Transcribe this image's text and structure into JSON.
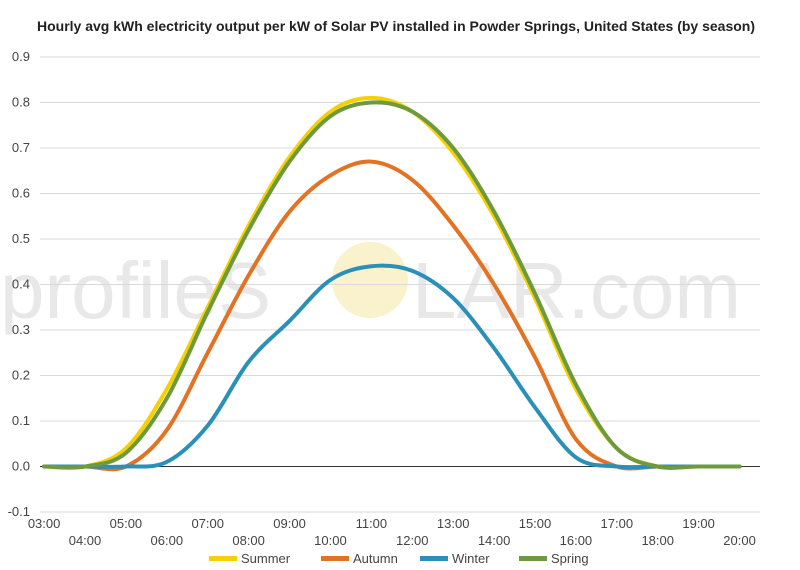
{
  "chart_data": {
    "type": "line",
    "title": "Hourly avg kWh electricity output per kW of Solar PV installed in Powder Springs, United States (by season)",
    "xlabel": "",
    "ylabel": "",
    "ylim": [
      -0.1,
      0.9
    ],
    "yticks": [
      -0.1,
      0.0,
      0.1,
      0.2,
      0.3,
      0.4,
      0.5,
      0.6,
      0.7,
      0.8,
      0.9
    ],
    "ytick_labels": [
      "-0.1",
      "0.0",
      "0.1",
      "0.2",
      "0.3",
      "0.4",
      "0.5",
      "0.6",
      "0.7",
      "0.8",
      "0.9"
    ],
    "xlim": [
      2.9,
      20.5
    ],
    "x_ticks_upper": [
      "03:00",
      "05:00",
      "07:00",
      "09:00",
      "11:00",
      "13:00",
      "15:00",
      "17:00",
      "19:00"
    ],
    "x_ticks_lower": [
      "04:00",
      "06:00",
      "08:00",
      "10:00",
      "12:00",
      "14:00",
      "16:00",
      "18:00",
      "20:00"
    ],
    "x": [
      3,
      4,
      5,
      6,
      7,
      8,
      9,
      10,
      11,
      12,
      13,
      14,
      15,
      16,
      17,
      18,
      19,
      20
    ],
    "grid": true,
    "legend_position": "bottom",
    "series": [
      {
        "name": "Summer",
        "color": "#f7d000",
        "values": [
          0,
          0,
          0.04,
          0.17,
          0.35,
          0.53,
          0.68,
          0.78,
          0.81,
          0.78,
          0.69,
          0.55,
          0.37,
          0.17,
          0.04,
          0,
          0,
          0
        ]
      },
      {
        "name": "Autumn",
        "color": "#e37222",
        "values": [
          0,
          0,
          0,
          0.08,
          0.25,
          0.42,
          0.56,
          0.64,
          0.67,
          0.63,
          0.53,
          0.4,
          0.24,
          0.06,
          0,
          0,
          0,
          0
        ]
      },
      {
        "name": "Winter",
        "color": "#2a90b8",
        "values": [
          0,
          0,
          0,
          0.01,
          0.09,
          0.23,
          0.32,
          0.41,
          0.44,
          0.43,
          0.37,
          0.26,
          0.13,
          0.02,
          0,
          0,
          0,
          0
        ]
      },
      {
        "name": "Spring",
        "color": "#6e9a3f",
        "values": [
          0,
          0,
          0.03,
          0.15,
          0.34,
          0.52,
          0.67,
          0.77,
          0.8,
          0.78,
          0.7,
          0.56,
          0.38,
          0.18,
          0.04,
          0,
          0,
          0
        ]
      }
    ]
  },
  "watermark": {
    "left": "profileS",
    "right": "LAR.com"
  }
}
